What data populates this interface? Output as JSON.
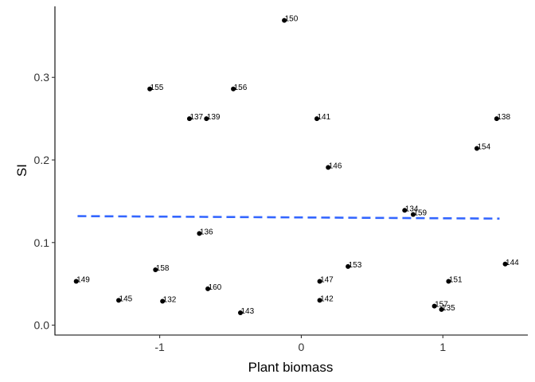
{
  "chart_data": {
    "type": "scatter",
    "xlabel": "Plant biomass",
    "ylabel": "SI",
    "x_ticks": [
      -1,
      0,
      1
    ],
    "x_tick_labels": [
      "-1",
      "0",
      "1"
    ],
    "y_ticks": [
      0.0,
      0.1,
      0.2,
      0.3
    ],
    "y_tick_labels": [
      "0.0",
      "0.1",
      "0.2",
      "0.3"
    ],
    "xlim": [
      -1.74,
      1.6
    ],
    "ylim": [
      -0.012,
      0.386
    ],
    "grid": false,
    "point_color": "#000000",
    "trend_color": "#3366FF",
    "trend_style": "dashed",
    "trend_line": {
      "x": [
        -1.58,
        1.4
      ],
      "y": [
        0.132,
        0.129
      ]
    },
    "points": [
      {
        "label": "150",
        "x": -0.12,
        "y": 0.369
      },
      {
        "label": "155",
        "x": -1.07,
        "y": 0.286
      },
      {
        "label": "156",
        "x": -0.48,
        "y": 0.286
      },
      {
        "label": "137",
        "x": -0.79,
        "y": 0.25
      },
      {
        "label": "139",
        "x": -0.67,
        "y": 0.25
      },
      {
        "label": "141",
        "x": 0.11,
        "y": 0.25
      },
      {
        "label": "138",
        "x": 1.38,
        "y": 0.25
      },
      {
        "label": "154",
        "x": 1.24,
        "y": 0.214
      },
      {
        "label": "146",
        "x": 0.19,
        "y": 0.191
      },
      {
        "label": "134",
        "x": 0.73,
        "y": 0.139
      },
      {
        "label": "159",
        "x": 0.79,
        "y": 0.134
      },
      {
        "label": "136",
        "x": -0.72,
        "y": 0.111
      },
      {
        "label": "144",
        "x": 1.44,
        "y": 0.074
      },
      {
        "label": "153",
        "x": 0.33,
        "y": 0.071
      },
      {
        "label": "158",
        "x": -1.03,
        "y": 0.067
      },
      {
        "label": "149",
        "x": -1.59,
        "y": 0.053
      },
      {
        "label": "147",
        "x": 0.13,
        "y": 0.053
      },
      {
        "label": "151",
        "x": 1.04,
        "y": 0.053
      },
      {
        "label": "160",
        "x": -0.66,
        "y": 0.044
      },
      {
        "label": "145",
        "x": -1.29,
        "y": 0.03
      },
      {
        "label": "132",
        "x": -0.98,
        "y": 0.029
      },
      {
        "label": "142",
        "x": 0.13,
        "y": 0.03
      },
      {
        "label": "157",
        "x": 0.94,
        "y": 0.023
      },
      {
        "label": "135",
        "x": 0.99,
        "y": 0.019
      },
      {
        "label": "143",
        "x": -0.43,
        "y": 0.015
      }
    ]
  }
}
